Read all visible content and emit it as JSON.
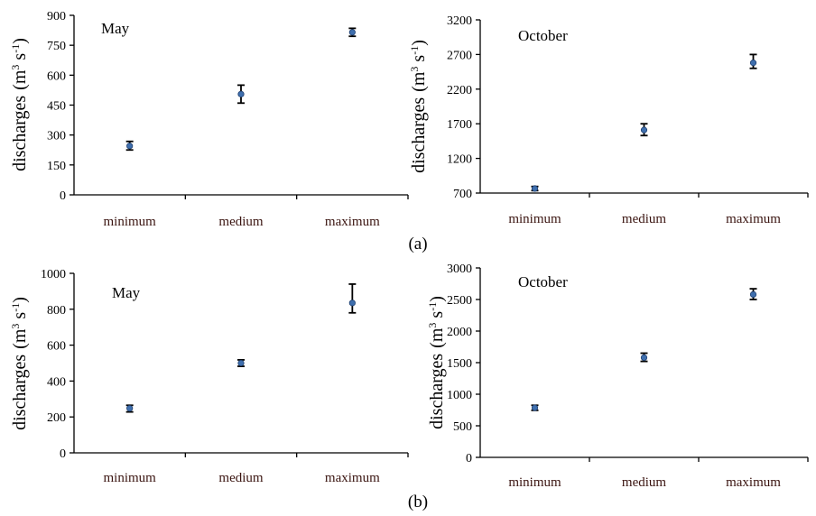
{
  "captions": {
    "a": "(a)",
    "b": "(b)"
  },
  "colors": {
    "point": "#3f6fae",
    "axis": "#000000",
    "tick_label_x": "#3a1410"
  },
  "chart_data": [
    {
      "type": "scatter",
      "panel": "a",
      "title": "May",
      "ylabel_main": "discharges",
      "ylabel_unit": "(m",
      "ylabel_sup1": "3",
      "ylabel_s": " s",
      "ylabel_sup2": "-1",
      "ylabel_close": ")",
      "categories": [
        "minimum",
        "medium",
        "maximum"
      ],
      "values": [
        245,
        505,
        815
      ],
      "error_low": [
        225,
        460,
        795
      ],
      "error_high": [
        268,
        550,
        835
      ],
      "ylim": [
        0,
        900
      ],
      "yticks": [
        "0",
        "150",
        "300",
        "450",
        "600",
        "750",
        "900"
      ],
      "grid": false
    },
    {
      "type": "scatter",
      "panel": "a",
      "title": "October",
      "ylabel_main": "discharges",
      "ylabel_unit": "(m",
      "ylabel_sup1": "3",
      "ylabel_s": " s",
      "ylabel_sup2": "-1",
      "ylabel_close": ")",
      "categories": [
        "minimum",
        "medium",
        "maximum"
      ],
      "values": [
        765,
        1610,
        2580
      ],
      "error_low": [
        735,
        1530,
        2500
      ],
      "error_high": [
        795,
        1700,
        2700
      ],
      "ylim": [
        700,
        3200
      ],
      "yticks": [
        "700",
        "1200",
        "1700",
        "2200",
        "2700",
        "3200"
      ],
      "grid": false
    },
    {
      "type": "scatter",
      "panel": "b",
      "title": "May",
      "ylabel_main": "discharges",
      "ylabel_unit": "(m",
      "ylabel_sup1": "3",
      "ylabel_s": " s",
      "ylabel_sup2": "-1",
      "ylabel_close": ")",
      "categories": [
        "minimum",
        "medium",
        "maximum"
      ],
      "values": [
        248,
        500,
        835
      ],
      "error_low": [
        228,
        482,
        780
      ],
      "error_high": [
        265,
        518,
        940
      ],
      "ylim": [
        0,
        1000
      ],
      "yticks": [
        "0",
        "200",
        "400",
        "600",
        "800",
        "1000"
      ],
      "grid": false
    },
    {
      "type": "scatter",
      "panel": "b",
      "title": "October",
      "ylabel_main": "discharges",
      "ylabel_unit": "(m",
      "ylabel_sup1": "3",
      "ylabel_s": " s",
      "ylabel_sup2": "-1",
      "ylabel_close": ")",
      "categories": [
        "minimum",
        "medium",
        "maximum"
      ],
      "values": [
        785,
        1580,
        2580
      ],
      "error_low": [
        745,
        1520,
        2500
      ],
      "error_high": [
        825,
        1650,
        2670
      ],
      "ylim": [
        0,
        3000
      ],
      "yticks": [
        "0",
        "500",
        "1000",
        "1500",
        "2000",
        "2500",
        "3000"
      ],
      "grid": false
    }
  ]
}
